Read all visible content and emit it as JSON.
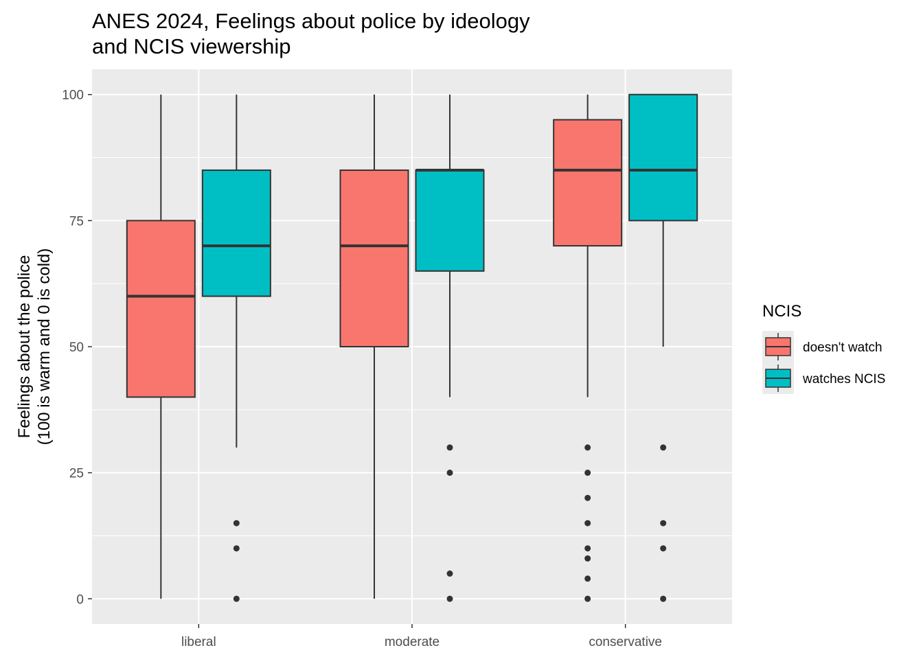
{
  "chart_data": {
    "type": "box",
    "title": [
      "ANES 2024, Feelings about police by ideology",
      "and NCIS viewership"
    ],
    "xlabel": "",
    "ylabel": [
      "Feelings about the police",
      "(100 is warm and 0 is cold)"
    ],
    "ylim": [
      -5,
      105
    ],
    "yticks": [
      0,
      25,
      50,
      75,
      100
    ],
    "categories": [
      "liberal",
      "moderate",
      "conservative"
    ],
    "legend": {
      "title": "NCIS",
      "position": "right",
      "entries": [
        {
          "label": "doesn't watch",
          "color": "#F8766D"
        },
        {
          "label": "watches NCIS",
          "color": "#00BFC4"
        }
      ]
    },
    "series": [
      {
        "name": "doesn't watch",
        "color": "#F8766D",
        "boxes": [
          {
            "category": "liberal",
            "min": 0,
            "q1": 40,
            "median": 60,
            "q3": 75,
            "max": 100,
            "outliers": []
          },
          {
            "category": "moderate",
            "min": 0,
            "q1": 50,
            "median": 70,
            "q3": 85,
            "max": 100,
            "outliers": []
          },
          {
            "category": "conservative",
            "min": 40,
            "q1": 70,
            "median": 85,
            "q3": 95,
            "max": 100,
            "outliers": [
              30,
              25,
              20,
              15,
              10,
              8,
              4,
              0
            ]
          }
        ]
      },
      {
        "name": "watches NCIS",
        "color": "#00BFC4",
        "boxes": [
          {
            "category": "liberal",
            "min": 30,
            "q1": 60,
            "median": 70,
            "q3": 85,
            "max": 100,
            "outliers": [
              15,
              10,
              0
            ]
          },
          {
            "category": "moderate",
            "min": 40,
            "q1": 65,
            "median": 85,
            "q3": 85,
            "max": 100,
            "outliers": [
              30,
              25,
              5,
              0
            ]
          },
          {
            "category": "conservative",
            "min": 50,
            "q1": 75,
            "median": 85,
            "q3": 100,
            "max": 100,
            "outliers": [
              30,
              15,
              10,
              0
            ]
          }
        ]
      }
    ],
    "grid": true,
    "panel_background": "#EBEBEB"
  }
}
